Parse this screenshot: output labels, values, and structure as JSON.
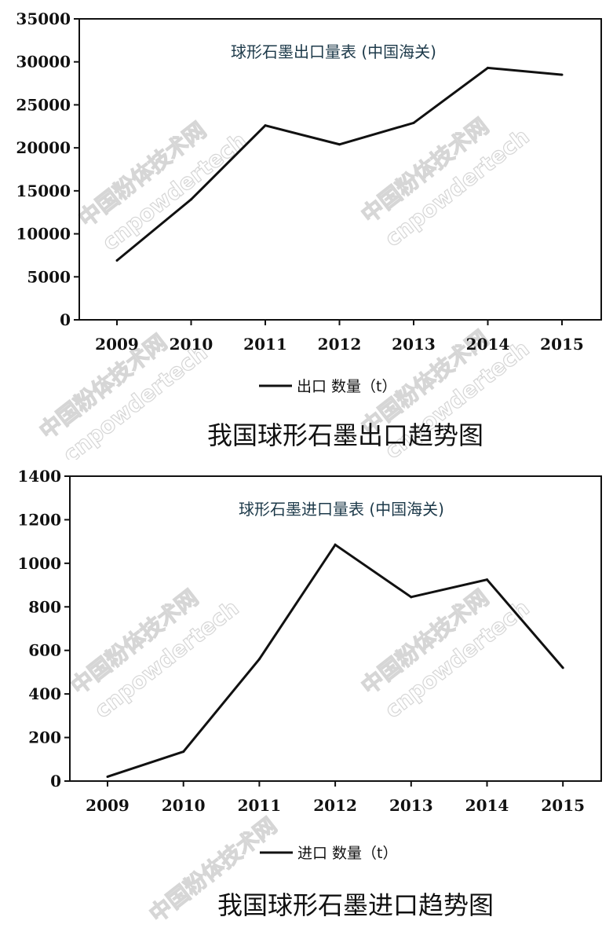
{
  "chart_data": [
    {
      "type": "line",
      "title": "球形石墨出口量表 (中国海关)",
      "caption": "我国球形石墨出口趋势图",
      "categories": [
        "2009",
        "2010",
        "2011",
        "2012",
        "2013",
        "2014",
        "2015"
      ],
      "series": [
        {
          "name": "出口 数量（t）",
          "values": [
            6900,
            14000,
            22600,
            20400,
            22900,
            29300,
            28500
          ],
          "color": "#111111"
        }
      ],
      "ylim": [
        0,
        35000
      ],
      "yticks": [
        "0",
        "5000",
        "10000",
        "15000",
        "20000",
        "25000",
        "30000",
        "35000"
      ],
      "grid": false,
      "legend_position": "bottom-center",
      "watermark": [
        "中国粉体技术网",
        "cnpowdertech"
      ]
    },
    {
      "type": "line",
      "title": "球形石墨进口量表 (中国海关)",
      "caption": "我国球形石墨进口趋势图",
      "categories": [
        "2009",
        "2010",
        "2011",
        "2012",
        "2013",
        "2014",
        "2015"
      ],
      "series": [
        {
          "name": "进口 数量（t）",
          "values": [
            20,
            135,
            560,
            1085,
            845,
            925,
            520
          ],
          "color": "#111111"
        }
      ],
      "ylim": [
        0,
        1400
      ],
      "yticks": [
        "0",
        "200",
        "400",
        "600",
        "800",
        "1000",
        "1200",
        "1400"
      ],
      "grid": false,
      "legend_position": "bottom-center",
      "watermark": [
        "中国粉体技术网",
        "cnpowdertech"
      ]
    }
  ]
}
